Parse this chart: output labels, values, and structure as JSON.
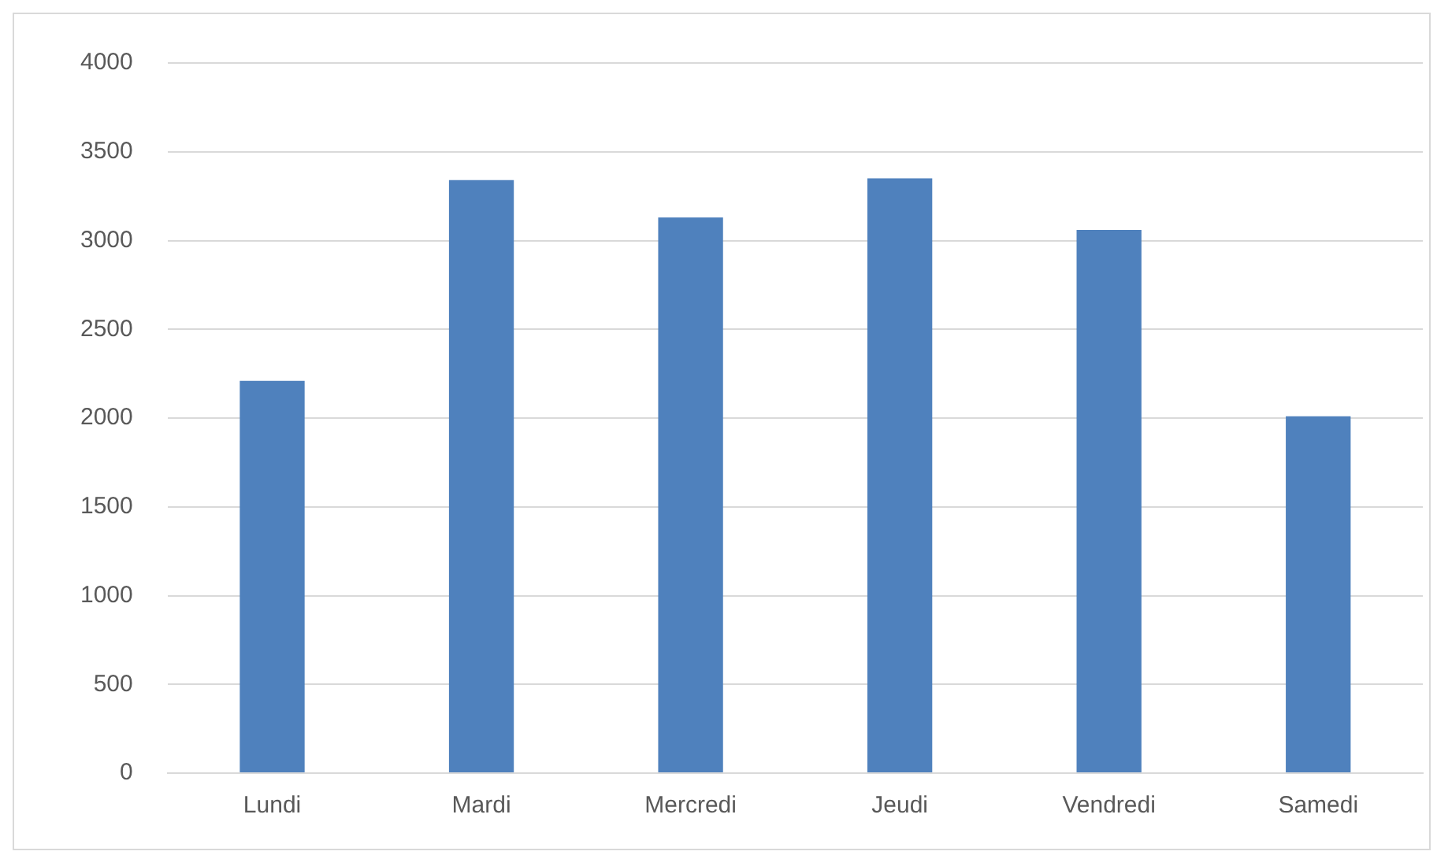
{
  "chart_data": {
    "type": "bar",
    "categories": [
      "Lundi",
      "Mardi",
      "Mercredi",
      "Jeudi",
      "Vendredi",
      "Samedi"
    ],
    "values": [
      2210,
      3340,
      3130,
      3350,
      3060,
      2010
    ],
    "color": "#4f81bd",
    "ylim": [
      0,
      4000
    ],
    "yticks": [
      0,
      500,
      1000,
      1500,
      2000,
      2500,
      3000,
      3500,
      4000
    ],
    "grid": "y",
    "legend": false
  }
}
